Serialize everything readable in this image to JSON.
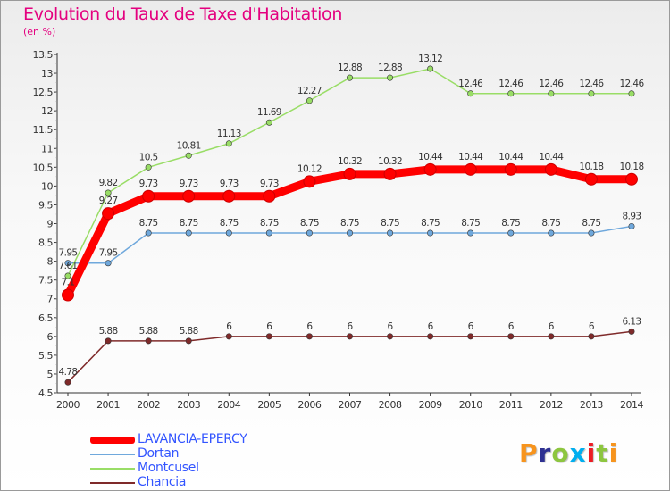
{
  "header": {
    "title": "Evolution du Taux de Taxe d'Habitation",
    "unit": "(en %)"
  },
  "logo": {
    "letters": [
      "P",
      "r",
      "o",
      "x",
      "i",
      "t",
      "i"
    ],
    "colors": [
      "#f7941d",
      "#2e3192",
      "#8dc63f",
      "#00aeef",
      "#ed1c24",
      "#8dc63f",
      "#f7941d"
    ]
  },
  "chart_data": {
    "type": "line",
    "title": "Evolution du Taux de Taxe d'Habitation",
    "ylabel": "(en %)",
    "xlabel": "",
    "x": [
      "2000",
      "2001",
      "2002",
      "2003",
      "2004",
      "2005",
      "2006",
      "2007",
      "2008",
      "2009",
      "2010",
      "2011",
      "2012",
      "2013",
      "2014"
    ],
    "ylim": [
      4.5,
      13.5
    ],
    "yticks": [
      "4.5",
      "5",
      "5.5",
      "6",
      "6.5",
      "7",
      "7.5",
      "8",
      "8.5",
      "9",
      "9.5",
      "10",
      "10.5",
      "11",
      "11.5",
      "12",
      "12.5",
      "13",
      "13.5"
    ],
    "grid": false,
    "legend_position": "bottom-left",
    "series": [
      {
        "name": "LAVANCIA-EPERCY",
        "color": "#ff0000",
        "emphasis": true,
        "values": [
          7.1,
          9.27,
          9.73,
          9.73,
          9.73,
          9.73,
          10.12,
          10.32,
          10.32,
          10.44,
          10.44,
          10.44,
          10.44,
          10.18,
          10.18
        ],
        "labels": [
          "7.1",
          "9.27",
          "9.73",
          "9.73",
          "9.73",
          "9.73",
          "10.12",
          "10.32",
          "10.32",
          "10.44",
          "10.44",
          "10.44",
          "10.44",
          "10.18",
          "10.18"
        ]
      },
      {
        "name": "Dortan",
        "color": "#6fa8dc",
        "values": [
          7.95,
          7.95,
          8.75,
          8.75,
          8.75,
          8.75,
          8.75,
          8.75,
          8.75,
          8.75,
          8.75,
          8.75,
          8.75,
          8.75,
          8.93
        ],
        "labels": [
          "7.95",
          "7.95",
          "8.75",
          "8.75",
          "8.75",
          "8.75",
          "8.75",
          "8.75",
          "8.75",
          "8.75",
          "8.75",
          "8.75",
          "8.75",
          "8.75",
          "8.93"
        ]
      },
      {
        "name": "Montcusel",
        "color": "#99dd66",
        "values": [
          7.61,
          9.82,
          10.5,
          10.81,
          11.13,
          11.69,
          12.27,
          12.88,
          12.88,
          13.12,
          12.46,
          12.46,
          12.46,
          12.46,
          12.46
        ],
        "labels": [
          "7.61",
          "9.82",
          "10.5",
          "10.81",
          "11.13",
          "11.69",
          "12.27",
          "12.88",
          "12.88",
          "13.12",
          "12.46",
          "12.46",
          "12.46",
          "12.46",
          "12.46"
        ]
      },
      {
        "name": "Chancia",
        "color": "#7f2a2a",
        "values": [
          4.78,
          5.88,
          5.88,
          5.88,
          6,
          6,
          6,
          6,
          6,
          6,
          6,
          6,
          6,
          6,
          6.13
        ],
        "labels": [
          "4.78",
          "5.88",
          "5.88",
          "5.88",
          "6",
          "6",
          "6",
          "6",
          "6",
          "6",
          "6",
          "6",
          "6",
          "6",
          "6.13"
        ]
      }
    ]
  }
}
